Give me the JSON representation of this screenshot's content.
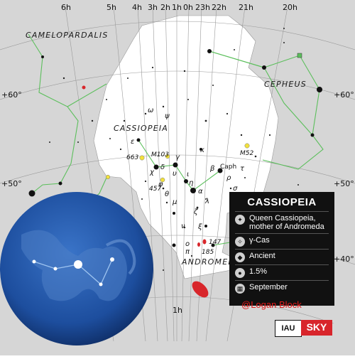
{
  "map": {
    "ra_labels": [
      "6h",
      "5h",
      "4h",
      "3h",
      "2h",
      "1h",
      "0h",
      "23h",
      "22h",
      "21h",
      "20h"
    ],
    "ra_bottom_label": "1h",
    "dec_labels_left": [
      "+60°",
      "+50°"
    ],
    "dec_labels_right": [
      "+60°",
      "+50°",
      "+40°"
    ],
    "constellations": {
      "camelopardalis": "CAMELOPARDALIS",
      "cepheus": "CEPHEUS",
      "cassiopeia": "CASSIOPEIA",
      "andromeda": "ANDROMEDA"
    },
    "star_labels": {
      "caph": "Caph",
      "delta": "δ",
      "epsilon": "ε",
      "gamma": "γ",
      "alpha": "α",
      "beta": "β",
      "eta": "η",
      "kappa": "κ",
      "zeta": "ζ",
      "omicron": "ο",
      "pi": "π",
      "iota": "ι",
      "omega": "ω",
      "psi": "ψ",
      "chi": "χ",
      "phi": "φ",
      "upsilon": "υ",
      "theta": "θ",
      "mu": "μ",
      "lambda": "λ",
      "nu": "ν",
      "xi": "ξ",
      "tau": "τ",
      "rho": "ρ",
      "sigma": "σ"
    },
    "deep_sky": {
      "m103": "M103",
      "m52": "M52",
      "ngc663": "663",
      "ngc457": "457",
      "ngc147": "147",
      "ngc185": "185"
    }
  },
  "info_card": {
    "title": "CASSIOPEIA",
    "rows": [
      {
        "icon": "star-cluster-icon",
        "text": "Queen Cassiopeia, mother of Andromeda"
      },
      {
        "icon": "gamma-star-icon",
        "text": "γ-Cas"
      },
      {
        "icon": "ancient-icon",
        "text": "Ancient"
      },
      {
        "icon": "sky-area-icon",
        "text": "1.5%"
      },
      {
        "icon": "calendar-icon",
        "text": "September"
      }
    ]
  },
  "credit": "@Logan Block",
  "logos": {
    "iau": "IAU",
    "sky": "SKY"
  },
  "colors": {
    "constellation_lines": "#5cbf5c",
    "highlight_region": "#ffffff",
    "background_sky": "#d6d6d6",
    "globe": "#1d4e9e",
    "credit": "#e11b1b"
  }
}
